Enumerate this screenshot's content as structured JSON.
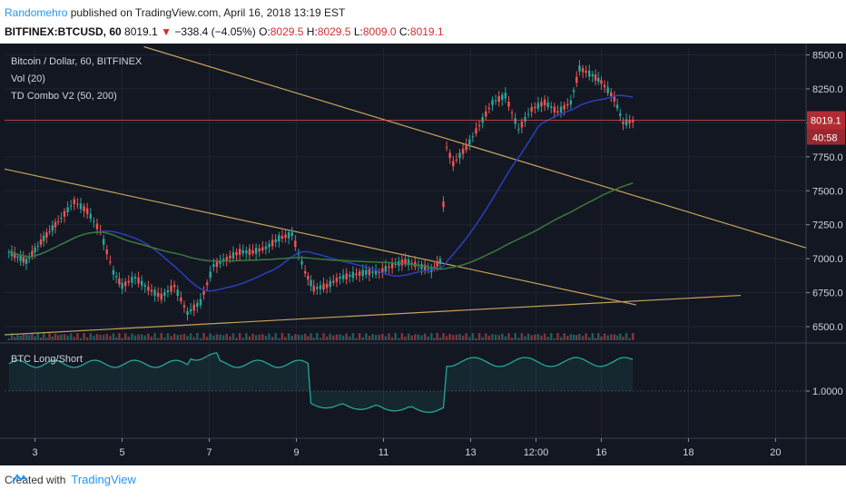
{
  "header": {
    "author": "Randomehro",
    "published_text": " published on TradingView.com, April 16, 2018 13:19 EST"
  },
  "symbol_line": {
    "symbol": "BITFINEX:BTCUSD, 60",
    "last": "8019.1",
    "change": "−338.4 (−4.05%)",
    "o_label": "O:",
    "o_val": "8029.5",
    "h_label": "H:",
    "h_val": "8029.5",
    "l_label": "L:",
    "l_val": "8009.0",
    "c_label": "C:",
    "c_val": "8019.1"
  },
  "legend": {
    "title": "Bitcoin / Dollar, 60, BITFINEX",
    "vol": "Vol (20)",
    "td": "TD Combo V2 (50, 200)",
    "indicator": "BTC Long/Short"
  },
  "price_badge": {
    "value": "8019.1",
    "countdown": "40:58"
  },
  "footer": {
    "created": "Created with",
    "brand": "TradingView"
  },
  "colors": {
    "bg": "#131722",
    "up": "#26a69a",
    "down": "#ef5350",
    "ma50": "#2a3fbf",
    "ma200": "#3a7a3a",
    "trend": "#c9a25a",
    "indicator": "#26a69a"
  },
  "chart_data": {
    "type": "line",
    "price_axis": {
      "min": 6400,
      "max": 8550,
      "ticks": [
        6500,
        6750,
        7000,
        7250,
        7500,
        7750,
        8000,
        8250,
        8500
      ],
      "tick_labels": [
        "6500.0",
        "6750.0",
        "7000.0",
        "7250.0",
        "7500.0",
        "7750.0",
        "8000.0",
        "8250.0",
        "8500.0"
      ]
    },
    "time_axis": {
      "labels": [
        "3",
        "5",
        "7",
        "9",
        "11",
        "13",
        "12:00",
        "16",
        "18",
        "20"
      ],
      "positions_day": [
        3,
        5,
        7,
        9,
        11,
        13,
        14.5,
        16,
        18,
        20
      ],
      "range_day": [
        2.3,
        20.7
      ]
    },
    "series": [
      {
        "name": "BTCUSD",
        "x": [
          2.4,
          2.8,
          3.2,
          3.6,
          3.9,
          4.2,
          4.5,
          4.8,
          5.0,
          5.3,
          5.6,
          5.9,
          6.2,
          6.5,
          6.8,
          7.1,
          7.4,
          7.7,
          8.0,
          8.3,
          8.6,
          8.9,
          9.2,
          9.4,
          9.7,
          10.0,
          10.3,
          10.6,
          10.9,
          11.2,
          11.5,
          11.8,
          12.1,
          12.3,
          12.45,
          12.6,
          12.9,
          13.2,
          13.5,
          13.8,
          14.1,
          14.4,
          14.7,
          15.0,
          15.3,
          15.5,
          15.8,
          16.0,
          16.3,
          16.5,
          16.8
        ],
        "y": [
          7050,
          6980,
          7150,
          7300,
          7420,
          7350,
          7200,
          6900,
          6800,
          6860,
          6780,
          6720,
          6800,
          6600,
          6680,
          6950,
          7000,
          7050,
          7050,
          7080,
          7150,
          7180,
          6900,
          6780,
          6800,
          6860,
          6880,
          6900,
          6900,
          6950,
          6980,
          6950,
          6920,
          6980,
          7820,
          7700,
          7820,
          7980,
          8150,
          8200,
          7950,
          8100,
          8150,
          8080,
          8150,
          8400,
          8350,
          8300,
          8180,
          8000,
          8019
        ]
      }
    ],
    "indicator": {
      "name": "BTC Long/Short",
      "level_label": "1.0000",
      "level": 1.0
    }
  }
}
